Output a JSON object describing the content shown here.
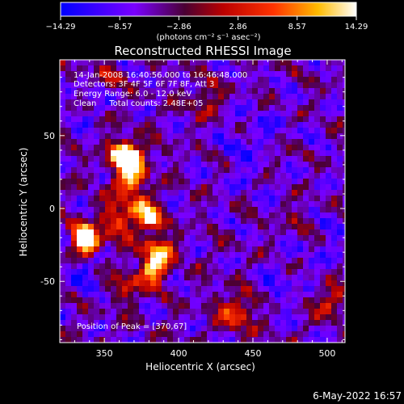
{
  "chart_data": {
    "type": "heatmap",
    "title": "Reconstructed RHESSI Image",
    "xlabel": "Heliocentric X (arcsec)",
    "ylabel": "Heliocentric Y (arcsec)",
    "xlim": [
      320,
      512
    ],
    "ylim": [
      -92,
      102
    ],
    "x_ticks": [
      "350",
      "400",
      "450",
      "500"
    ],
    "x_tick_values": [
      350,
      400,
      450,
      500
    ],
    "y_ticks": [
      "50",
      "0",
      "-50"
    ],
    "y_tick_values": [
      50,
      0,
      -50
    ],
    "colorbar": {
      "range": [
        -14.29,
        14.29
      ],
      "tick_labels": [
        "−14.29",
        "−8.57",
        "−2.86",
        "2.86",
        "8.57",
        "14.29"
      ],
      "tick_values": [
        -14.29,
        -8.57,
        -2.86,
        2.86,
        8.57,
        14.29
      ],
      "units_label": "(photons cm⁻² s⁻¹ asec⁻²)",
      "colormap": "blue-purple-red-yellow-white"
    },
    "annotations": [
      "14-Jan-2008 16:40:56.000 to 16:46:48.000",
      "Detectors: 3F 4F 5F 6F 7F 8F, Att 3",
      "Energy Range: 6.0 - 12.0 keV",
      "Clean     Total counts: 2.48E+05"
    ],
    "peak_label": "Position of Peak = [370,67]",
    "peak_position": [
      370,
      67
    ],
    "background_color": "#000000"
  },
  "footer": {
    "timestamp": "6-May-2022 16:57"
  }
}
